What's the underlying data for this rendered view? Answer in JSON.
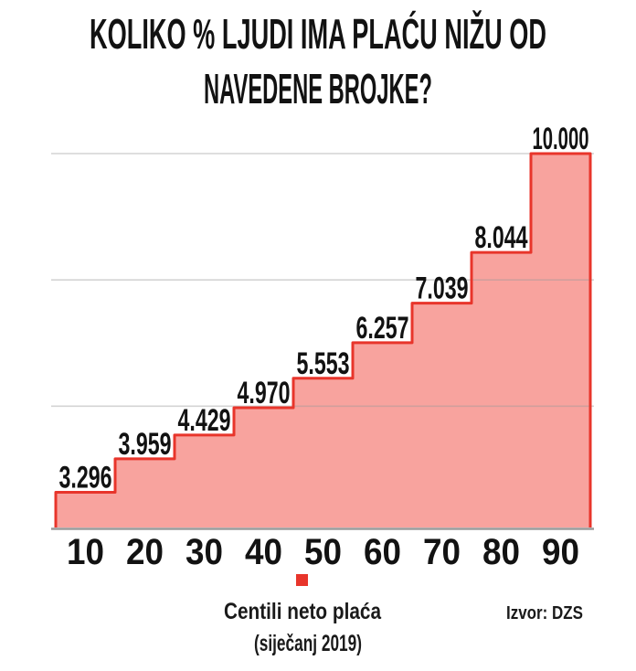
{
  "title": {
    "line1": "KOLIKO % LJUDI IMA PLAĆU NIŽU OD",
    "line2": "NAVEDENE BROJKE?"
  },
  "chart_data": {
    "type": "area",
    "step": true,
    "title": "KOLIKO % LJUDI IMA PLAĆU NIŽU OD NAVEDENE BROJKE?",
    "categories": [
      10,
      20,
      30,
      40,
      50,
      60,
      70,
      80,
      90
    ],
    "values": [
      3296,
      3959,
      4429,
      4970,
      5553,
      6257,
      7039,
      8044,
      10000
    ],
    "value_labels": [
      "3.296",
      "3.959",
      "4.429",
      "4.970",
      "5.553",
      "6.257",
      "7.039",
      "8.044",
      "10.000"
    ],
    "xlabel": "Centili neto plaća (siječanj 2019)",
    "ylabel": "",
    "ylim": [
      2600,
      10000
    ],
    "grid": true,
    "gridlines_y": [
      5000,
      7500,
      10000
    ],
    "legend_position": "bottom",
    "source": "Izvor: DZS"
  },
  "legend": {
    "line1": "Centili neto plaća",
    "line2": "(siječanj 2019)",
    "marker_color": "#e8352b"
  },
  "source": {
    "text": "Izvor: DZS"
  },
  "colors": {
    "background": "#ffffff",
    "fill": "#f8a39e",
    "stroke": "#e8352b",
    "grid": "#9a9a9a",
    "axis": "#8f8f8f",
    "text": "#121212"
  }
}
